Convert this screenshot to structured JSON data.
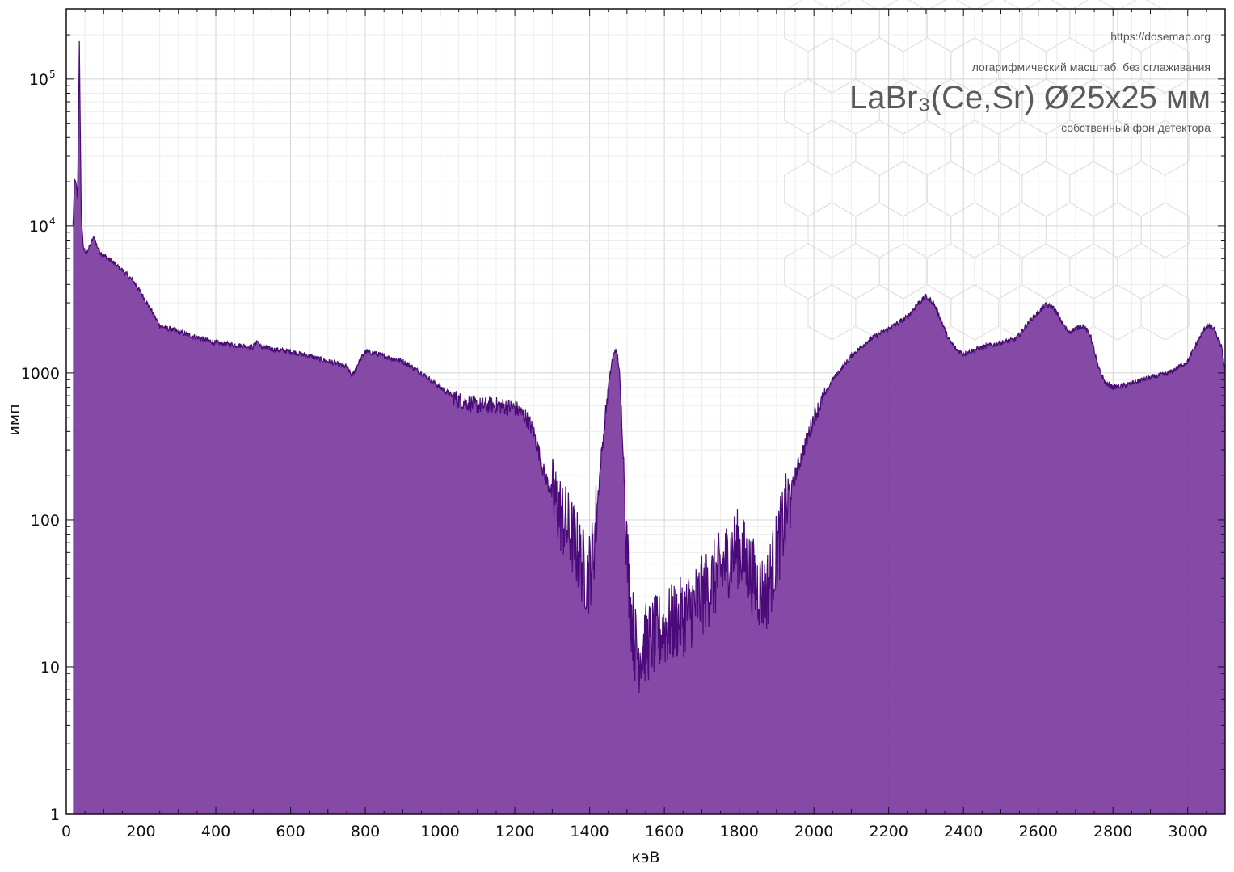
{
  "annotations": {
    "url": "https://dosemap.org",
    "mode": "логарифмический масштаб, без сглаживания",
    "title": "LaBr₃(Ce,Sr) Ø25x25 мм",
    "subtitle": "собственный фон детектора"
  },
  "colors": {
    "fill": "#7b3a9e",
    "line": "#4b0a7a",
    "grid_major": "#d4d4d4",
    "grid_minor": "#ececec"
  },
  "chart_data": {
    "type": "area",
    "xlabel": "кэВ",
    "ylabel": "имп",
    "xlim": [
      0,
      3100
    ],
    "ylim": [
      1,
      300000
    ],
    "y_scale": "log",
    "grid": true,
    "x_ticks": [
      "0",
      "200",
      "400",
      "600",
      "800",
      "1000",
      "1200",
      "1400",
      "1600",
      "1800",
      "2000",
      "2200",
      "2400",
      "2600",
      "2800",
      "3000"
    ],
    "y_ticks": [
      {
        "value": 1,
        "label": "1"
      },
      {
        "value": 10,
        "label": "10"
      },
      {
        "value": 100,
        "label": "100"
      },
      {
        "value": 1000,
        "label": "1000"
      },
      {
        "value": 10000,
        "label": "10",
        "exp": "4"
      },
      {
        "value": 100000,
        "label": "10",
        "exp": "5"
      }
    ],
    "series": [
      {
        "x": [
          18,
          22,
          26,
          30,
          33,
          35,
          37,
          40,
          45,
          50,
          60,
          70,
          75,
          80,
          90,
          100,
          120,
          150,
          180,
          200,
          230,
          250,
          300,
          350,
          400,
          450,
          500,
          505,
          512,
          520,
          550,
          600,
          650,
          700,
          750,
          765,
          780,
          800,
          830,
          850,
          900,
          950,
          1000,
          1050,
          1100,
          1150,
          1200,
          1230,
          1250,
          1280,
          1300,
          1330,
          1360,
          1380,
          1395,
          1410,
          1430,
          1450,
          1460,
          1468,
          1475,
          1480,
          1490,
          1500,
          1510,
          1520,
          1530,
          1540,
          1560,
          1600,
          1650,
          1700,
          1750,
          1780,
          1800,
          1820,
          1850,
          1870,
          1900,
          1950,
          2000,
          2050,
          2100,
          2150,
          2200,
          2250,
          2280,
          2300,
          2320,
          2340,
          2360,
          2380,
          2400,
          2450,
          2500,
          2540,
          2580,
          2620,
          2640,
          2660,
          2680,
          2700,
          2720,
          2740,
          2760,
          2780,
          2800,
          2830,
          2880,
          2950,
          3000,
          3030,
          3050,
          3070,
          3090,
          3100
        ],
        "values": [
          10000,
          20000,
          20000,
          15000,
          60000,
          180000,
          60000,
          12000,
          7500,
          6500,
          7000,
          8000,
          8500,
          7500,
          6700,
          6300,
          5800,
          5000,
          4200,
          3500,
          2600,
          2100,
          1900,
          1750,
          1600,
          1550,
          1500,
          1600,
          1650,
          1500,
          1450,
          1400,
          1300,
          1200,
          1100,
          950,
          1150,
          1400,
          1350,
          1300,
          1200,
          1000,
          800,
          650,
          600,
          600,
          580,
          500,
          400,
          200,
          150,
          100,
          70,
          50,
          40,
          60,
          250,
          800,
          1200,
          1450,
          1300,
          1000,
          300,
          60,
          25,
          15,
          12,
          14,
          15,
          18,
          22,
          30,
          45,
          60,
          65,
          50,
          35,
          30,
          60,
          200,
          500,
          900,
          1300,
          1700,
          2000,
          2400,
          3000,
          3300,
          3000,
          2300,
          1700,
          1450,
          1350,
          1500,
          1600,
          1700,
          2300,
          2900,
          2800,
          2300,
          1900,
          2000,
          2100,
          1800,
          1100,
          850,
          800,
          820,
          900,
          1000,
          1200,
          1700,
          2100,
          2000,
          1500,
          1050
        ]
      }
    ]
  }
}
